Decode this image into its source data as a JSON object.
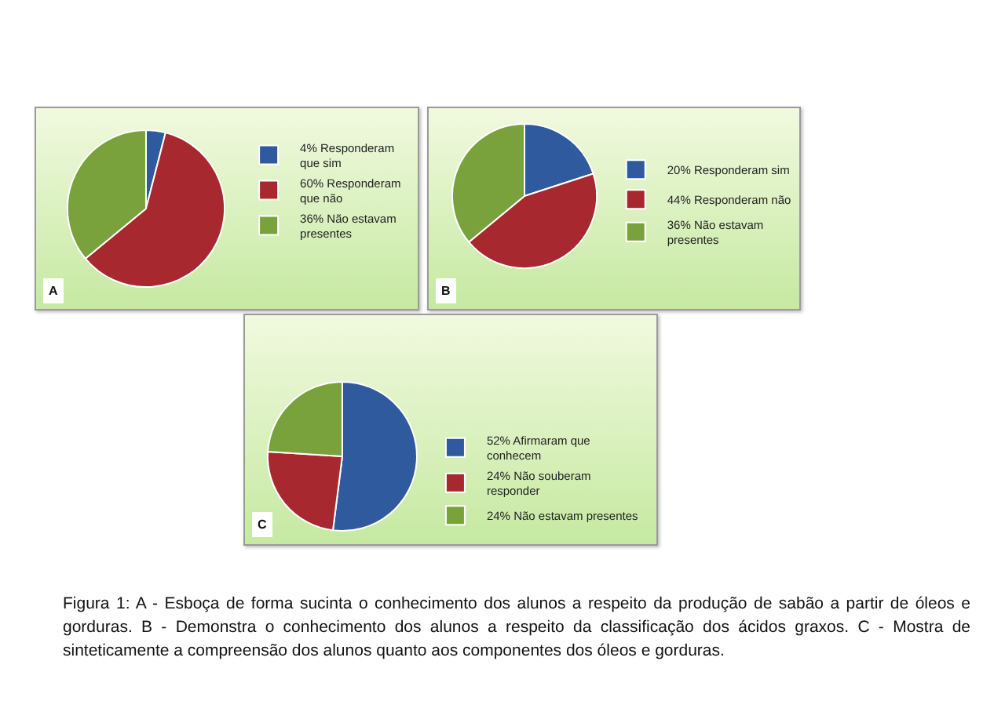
{
  "chart_data": [
    {
      "type": "pie",
      "categories": [
        "4% Responderam que sim",
        "60% Responderam que não",
        "36% Não estavam presentes"
      ],
      "values": [
        4,
        60,
        36
      ],
      "colors": [
        "#2f5b9e",
        "#a8282f",
        "#7aa23c"
      ],
      "legend": "right",
      "annotations": [
        "A"
      ]
    },
    {
      "type": "pie",
      "categories": [
        "20% Responderam sim",
        "44% Responderam não",
        "36% Não estavam presentes"
      ],
      "values": [
        20,
        44,
        36
      ],
      "colors": [
        "#2f5b9e",
        "#a8282f",
        "#7aa23c"
      ],
      "legend": "right",
      "annotations": [
        "B"
      ]
    },
    {
      "type": "pie",
      "categories": [
        "52% Afirmaram que conhecem",
        "24% Não souberam responder",
        "24% Não estavam presentes"
      ],
      "values": [
        52,
        24,
        24
      ],
      "colors": [
        "#2f5b9e",
        "#a8282f",
        "#7aa23c"
      ],
      "legend": "right",
      "annotations": [
        "C",
        "Figura 1: A - Esboça de forma sucinta o conhecimento dos alunos a respeito da produção de sabão a partir de óleos e gorduras. B - Demonstra o conhecimento dos alunos a respeito da classificação dos ácidos graxos. C - Mostra de sinteticamente a compreensão dos alunos quanto aos componentes dos óleos e gorduras."
      ]
    }
  ]
}
